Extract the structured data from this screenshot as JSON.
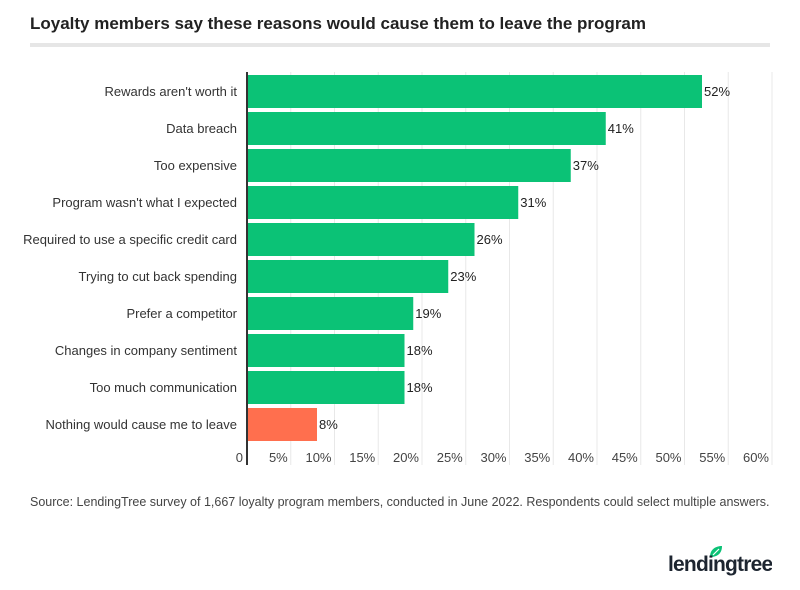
{
  "title": "Loyalty members say these reasons would cause them to leave the program",
  "source": "Source: LendingTree survey of 1,667 loyalty program members, conducted in June 2022. Respondents could select multiple answers.",
  "logo_text": "lendingtree",
  "colors": {
    "primary": "#0bc276",
    "highlight": "#ff6f4e",
    "grid": "#e8e8e8",
    "axis": "#333333"
  },
  "chart_data": {
    "type": "bar",
    "orientation": "horizontal",
    "categories": [
      "Rewards aren't worth it",
      "Data breach",
      "Too expensive",
      "Program wasn't what I expected",
      "Required to use a specific credit card",
      "Trying to cut back spending",
      "Prefer a competitor",
      "Changes in company sentiment",
      "Too much communication",
      "Nothing would cause me to leave"
    ],
    "values": [
      52,
      41,
      37,
      31,
      26,
      23,
      19,
      18,
      18,
      8
    ],
    "data_labels": [
      "52%",
      "41%",
      "37%",
      "31%",
      "26%",
      "23%",
      "19%",
      "18%",
      "18%",
      "8%"
    ],
    "highlighted_category": "Nothing would cause me to leave",
    "xlim": [
      0,
      60
    ],
    "xticks": [
      "0",
      "5%",
      "10%",
      "15%",
      "20%",
      "25%",
      "30%",
      "35%",
      "40%",
      "45%",
      "50%",
      "55%",
      "60%"
    ],
    "grid": "vertical"
  }
}
